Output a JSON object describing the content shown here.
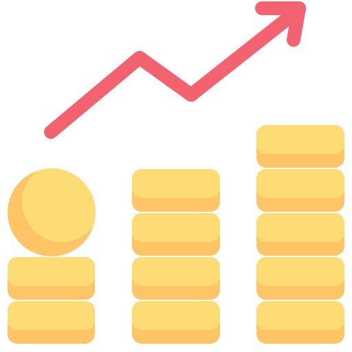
{
  "icon": {
    "name": "rising-coins-growth",
    "colors": {
      "coin_face": "#FDDC75",
      "coin_edge": "#FDC566",
      "coin_shadow": "#FDC566",
      "arrow": "#F2626F",
      "background": "#FFFFFF"
    },
    "stacks": [
      {
        "id": "left",
        "coins": 2,
        "has_round_coin_on_top": true
      },
      {
        "id": "middle",
        "coins": 4,
        "has_round_coin_on_top": false
      },
      {
        "id": "right",
        "coins": 5,
        "has_round_coin_on_top": false
      }
    ],
    "trend": "up"
  }
}
